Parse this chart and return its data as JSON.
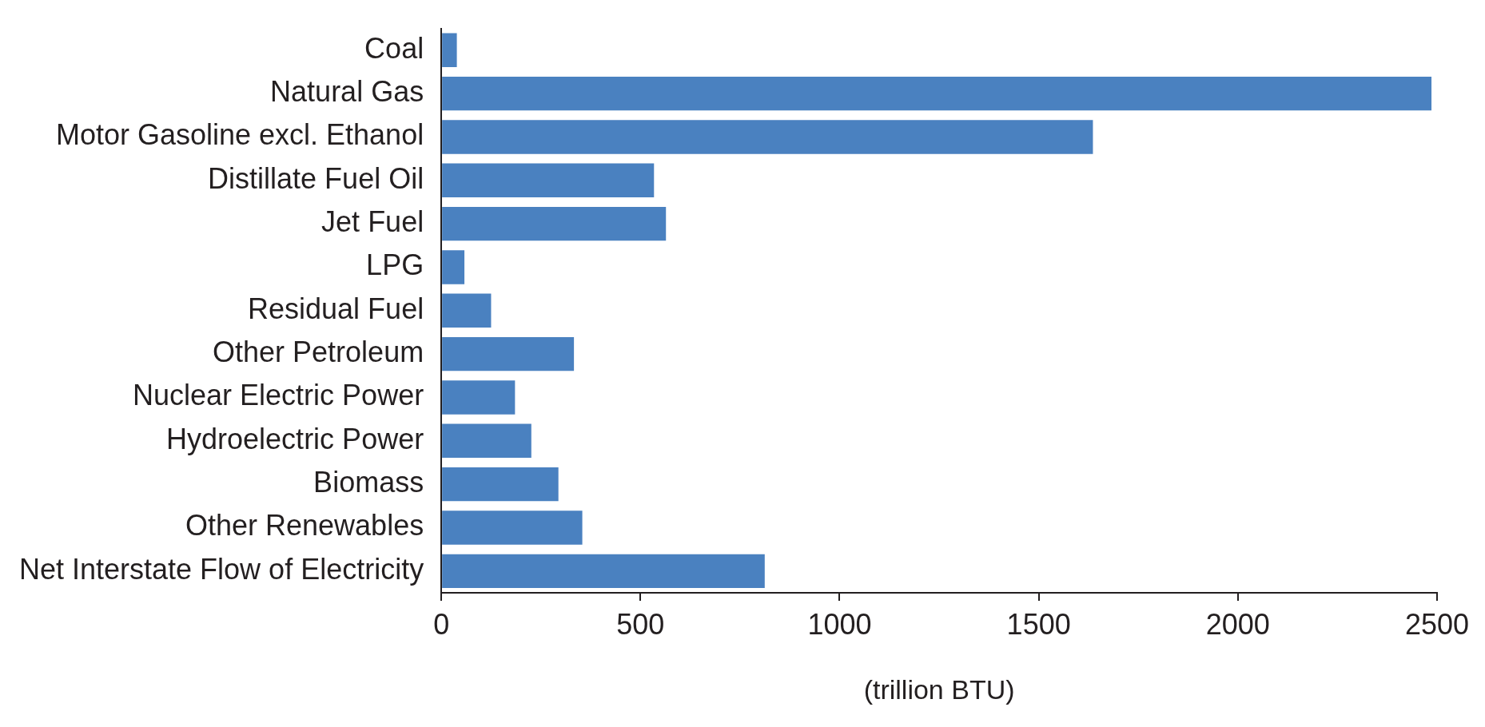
{
  "chart_data": {
    "type": "bar",
    "orientation": "horizontal",
    "xlabel": "(trillion BTU)",
    "categories": [
      "Coal",
      "Natural Gas",
      "Motor Gasoline excl. Ethanol",
      "Distillate Fuel Oil",
      "Jet Fuel",
      "LPG",
      "Residual Fuel",
      "Other Petroleum",
      "Nuclear Electric Power",
      "Hydroelectric Power",
      "Biomass",
      "Other Renewables",
      "Net Interstate Flow of Electricity"
    ],
    "values": [
      39,
      2486,
      1636,
      534,
      564,
      58,
      125,
      333,
      185,
      226,
      294,
      354,
      812
    ],
    "color": "#4a81c0",
    "xlim": [
      0,
      2500
    ],
    "xticks": [
      0,
      500,
      1000,
      1500,
      2000,
      2500
    ],
    "grid": false,
    "legend": false
  }
}
